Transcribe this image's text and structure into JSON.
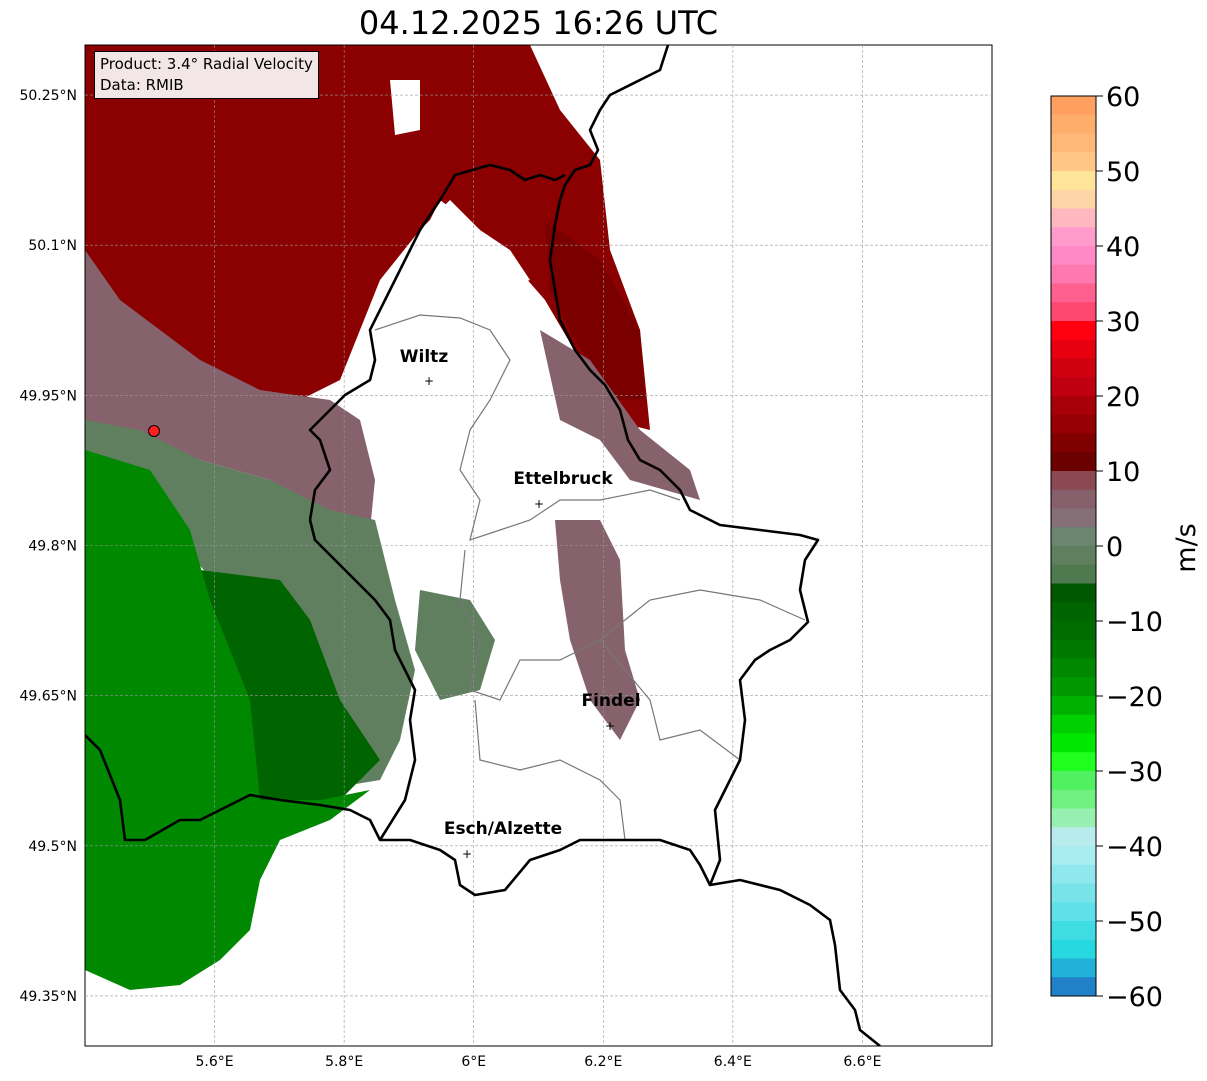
{
  "title": "04.12.2025 16:26 UTC",
  "info": {
    "product": "Product: 3.4° Radial Velocity",
    "data": "Data: RMIB"
  },
  "axes": {
    "x_ticks": [
      {
        "value": 5.6,
        "label": "5.6°E"
      },
      {
        "value": 5.8,
        "label": "5.8°E"
      },
      {
        "value": 6.0,
        "label": "6°E"
      },
      {
        "value": 6.2,
        "label": "6.2°E"
      },
      {
        "value": 6.4,
        "label": "6.4°E"
      },
      {
        "value": 6.6,
        "label": "6.6°E"
      }
    ],
    "y_ticks": [
      {
        "value": 50.25,
        "label": "50.25°N"
      },
      {
        "value": 50.1,
        "label": "50.1°N"
      },
      {
        "value": 49.95,
        "label": "49.95°N"
      },
      {
        "value": 49.8,
        "label": "49.8°N"
      },
      {
        "value": 49.65,
        "label": "49.65°N"
      },
      {
        "value": 49.5,
        "label": "49.5°N"
      },
      {
        "value": 49.35,
        "label": "49.35°N"
      }
    ],
    "lon_range": [
      5.4,
      6.8
    ],
    "lat_range": [
      49.3,
      50.3
    ]
  },
  "cities": [
    {
      "name": "Wiltz"
    },
    {
      "name": "Ettelbruck"
    },
    {
      "name": "Findel"
    },
    {
      "name": "Esch/Alzette"
    }
  ],
  "colorbar": {
    "label": "m/s",
    "range": [
      -60,
      60
    ],
    "ticks": [
      {
        "value": 60,
        "label": "60"
      },
      {
        "value": 50,
        "label": "50"
      },
      {
        "value": 40,
        "label": "40"
      },
      {
        "value": 30,
        "label": "30"
      },
      {
        "value": 20,
        "label": "20"
      },
      {
        "value": 10,
        "label": "10"
      },
      {
        "value": 0,
        "label": "0"
      },
      {
        "value": -10,
        "label": "−10"
      },
      {
        "value": -20,
        "label": "−20"
      },
      {
        "value": -30,
        "label": "−30"
      },
      {
        "value": -40,
        "label": "−40"
      },
      {
        "value": -50,
        "label": "−50"
      },
      {
        "value": -60,
        "label": "−60"
      }
    ],
    "colors_top_to_bottom": [
      "#ffa060",
      "#ffad6b",
      "#ffb878",
      "#ffc685",
      "#ffe59a",
      "#ffd5a8",
      "#ffb8c0",
      "#ff9ccc",
      "#ff88c8",
      "#ff78b0",
      "#ff6090",
      "#ff4870",
      "#ff0010",
      "#e60010",
      "#d00010",
      "#c00010",
      "#a80008",
      "#950005",
      "#800000",
      "#6a0000",
      "#8b4a52",
      "#86606a",
      "#857078",
      "#6a8670",
      "#5f7f5f",
      "#4f7a4f",
      "#005800",
      "#006400",
      "#006c00",
      "#007800",
      "#008800",
      "#009800",
      "#00b000",
      "#00d000",
      "#00e800",
      "#20ff20",
      "#50f060",
      "#70f080",
      "#98f0b0",
      "#b8ecec",
      "#a8ecf0",
      "#90e8ee",
      "#78e4ea",
      "#60e0e8",
      "#40dce4",
      "#28d8e0",
      "#20b0d8",
      "#2080c8"
    ]
  }
}
